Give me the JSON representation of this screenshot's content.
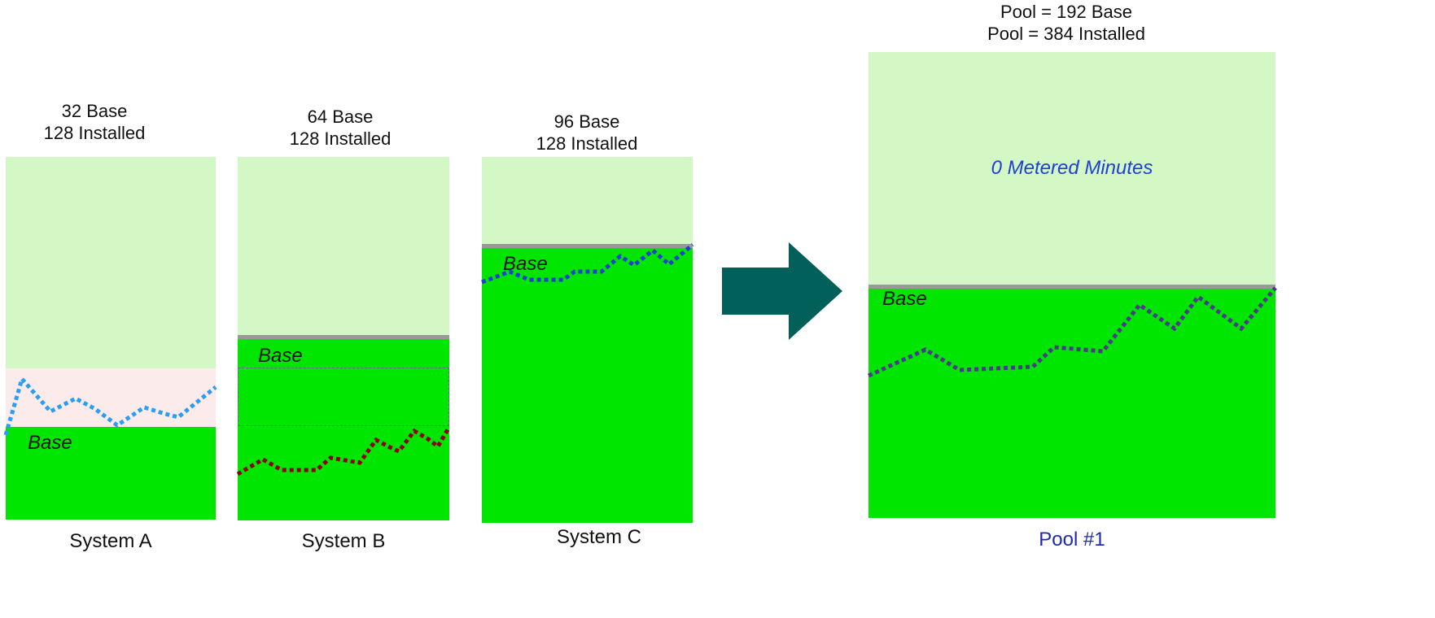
{
  "systems": [
    {
      "id": "a",
      "base_line": "32 Base",
      "installed_line": "128 Installed",
      "name": "System A",
      "base_label": "Base",
      "base_cores": 32,
      "installed_cores": 128
    },
    {
      "id": "b",
      "base_line": "64 Base",
      "installed_line": "128 Installed",
      "name": "System B",
      "base_label": "Base",
      "base_cores": 64,
      "installed_cores": 128
    },
    {
      "id": "c",
      "base_line": "96 Base",
      "installed_line": "128 Installed",
      "name": "System C",
      "base_label": "Base",
      "base_cores": 96,
      "installed_cores": 128
    }
  ],
  "pool": {
    "base_line": "Pool = 192 Base",
    "installed_line": "Pool = 384 Installed",
    "metered_label": "0 Metered Minutes",
    "base_label": "Base",
    "name": "Pool #1",
    "base_cores": 192,
    "installed_cores": 384
  },
  "arrow_icon": "right-arrow-icon",
  "colors": {
    "installed_capacity": "#d3f8c5",
    "base_capacity": "#00e600",
    "metered_overage": "#fbebeb",
    "separator": "#999999",
    "arrow": "#02605a",
    "trend_system_a": "#2a9df4",
    "trend_system_b": "#8b0000",
    "trend_system_c": "#1f3fd6",
    "trend_pool": "#4b3a8c",
    "metered_text": "#1f3fd6",
    "pool_name_text": "#1f2aa8"
  }
}
